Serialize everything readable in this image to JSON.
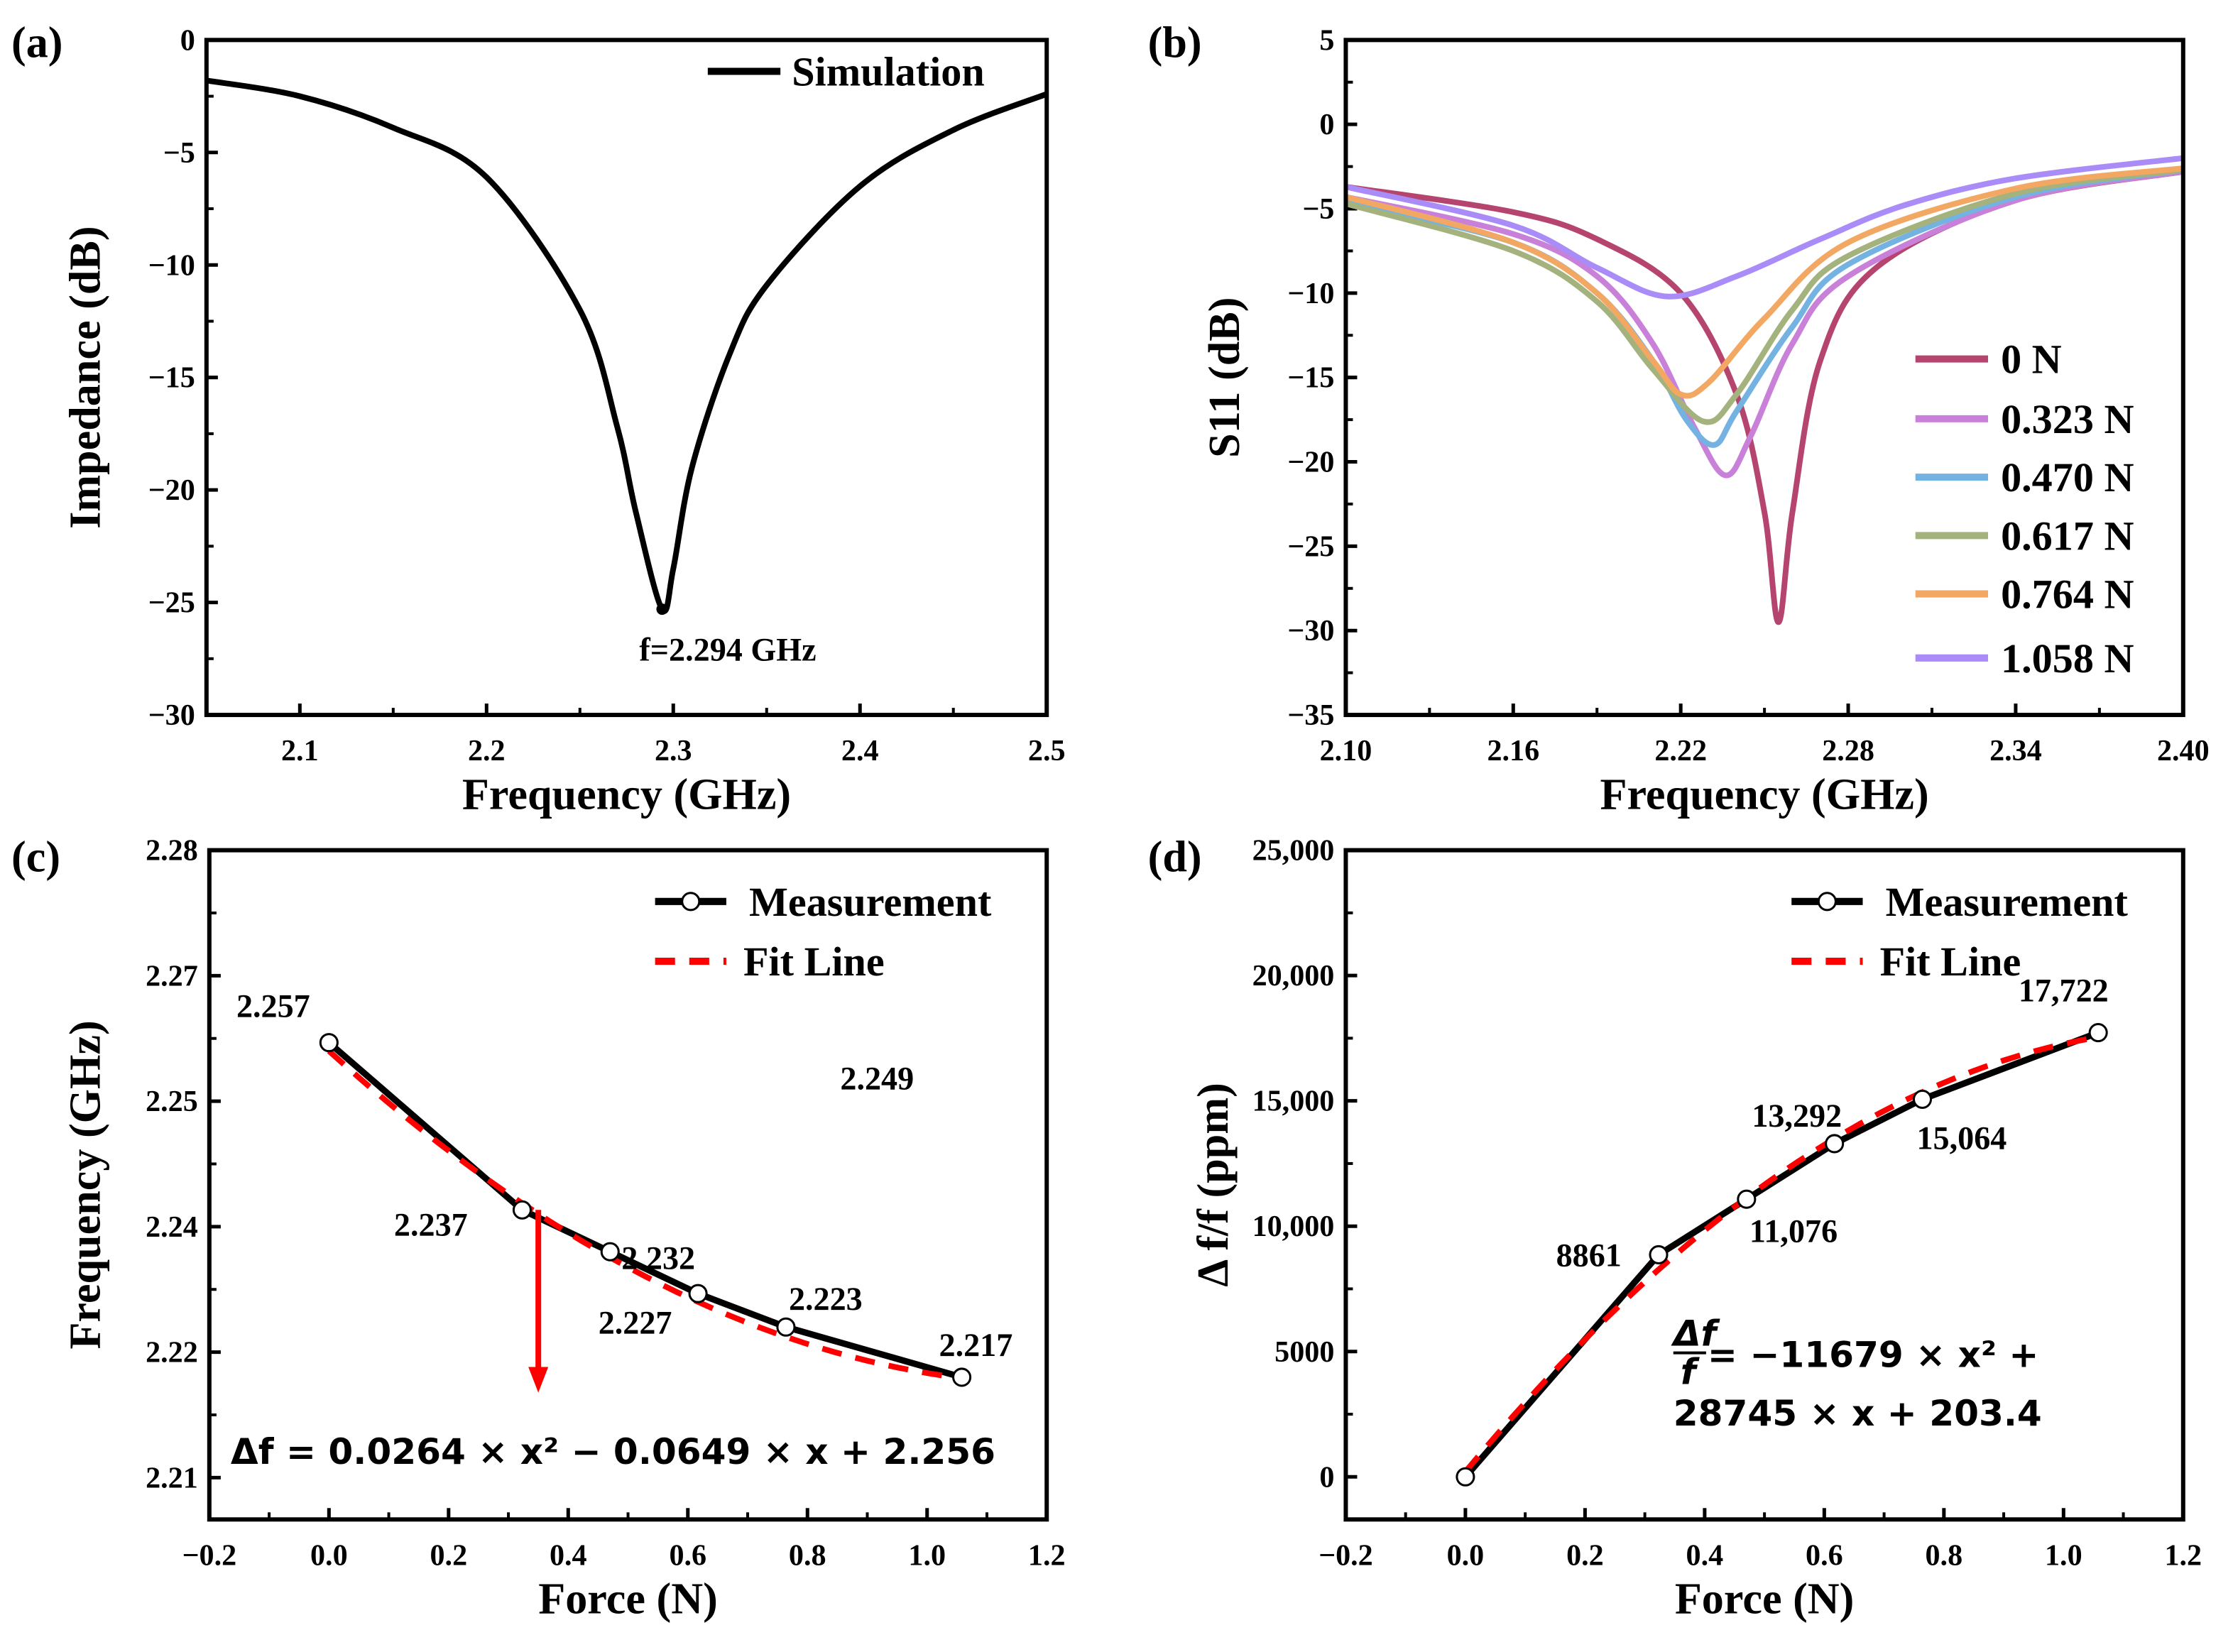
{
  "chart_data": [
    {
      "id": "a",
      "type": "line",
      "panel_label": "(a)",
      "xlabel": "Frequency (GHz)",
      "ylabel": "Impedance (dB)",
      "xlim": [
        2.05,
        2.5
      ],
      "ylim": [
        -30,
        0
      ],
      "xticks": [
        2.1,
        2.2,
        2.3,
        2.4,
        2.5
      ],
      "xtick_labels": [
        "2.1",
        "2.2",
        "2.3",
        "2.4",
        "2.5"
      ],
      "yticks": [
        0,
        -5,
        -10,
        -15,
        -20,
        -25,
        -30
      ],
      "ytick_labels": [
        "0",
        "−5",
        "−10",
        "−15",
        "−20",
        "−25",
        "−30"
      ],
      "legend": "top-right",
      "annotation": "f=2.294 GHz",
      "series": [
        {
          "name": "Simulation",
          "color": "#000000",
          "x": [
            2.05,
            2.1,
            2.15,
            2.2,
            2.25,
            2.27,
            2.28,
            2.294,
            2.3,
            2.31,
            2.33,
            2.35,
            2.4,
            2.45,
            2.5
          ],
          "y": [
            -1.8,
            -2.5,
            -3.9,
            -6.1,
            -12.0,
            -17.2,
            -21.0,
            -25.3,
            -23.5,
            -19.0,
            -14.0,
            -10.9,
            -6.5,
            -4.0,
            -2.4
          ]
        }
      ]
    },
    {
      "id": "b",
      "type": "line",
      "panel_label": "(b)",
      "xlabel": "Frequency (GHz)",
      "ylabel": "S11 (dB)",
      "xlim": [
        2.1,
        2.4
      ],
      "ylim": [
        -35,
        5
      ],
      "xticks": [
        2.1,
        2.16,
        2.22,
        2.28,
        2.34,
        2.4
      ],
      "xtick_labels": [
        "2.10",
        "2.16",
        "2.22",
        "2.28",
        "2.34",
        "2.40"
      ],
      "yticks": [
        5,
        0,
        -5,
        -10,
        -15,
        -20,
        -25,
        -30,
        -35
      ],
      "ytick_labels": [
        "5",
        "0",
        "−5",
        "−10",
        "−15",
        "−20",
        "−25",
        "−30",
        "−35"
      ],
      "legend": "right",
      "series": [
        {
          "name": "0 N",
          "color": "#b5456f",
          "x": [
            2.1,
            2.16,
            2.19,
            2.22,
            2.24,
            2.25,
            2.255,
            2.26,
            2.27,
            2.29,
            2.34,
            2.4
          ],
          "y": [
            -3.7,
            -5.2,
            -6.8,
            -10,
            -16,
            -23,
            -29.5,
            -23,
            -14,
            -8.5,
            -4.5,
            -2.8
          ]
        },
        {
          "name": "0.323 N",
          "color": "#c980d8",
          "x": [
            2.1,
            2.16,
            2.19,
            2.21,
            2.225,
            2.236,
            2.245,
            2.26,
            2.28,
            2.34,
            2.4
          ],
          "y": [
            -4.3,
            -6.5,
            -9,
            -13,
            -18,
            -20.8,
            -18.5,
            -13,
            -9,
            -4.5,
            -2.8
          ]
        },
        {
          "name": "0.470 N",
          "color": "#74b2e2",
          "x": [
            2.1,
            2.16,
            2.19,
            2.21,
            2.222,
            2.232,
            2.24,
            2.26,
            2.28,
            2.34,
            2.4
          ],
          "y": [
            -4.6,
            -7,
            -10,
            -14,
            -17.5,
            -19,
            -17,
            -12,
            -8.3,
            -4.3,
            -2.7
          ]
        },
        {
          "name": "0.617 N",
          "color": "#a4b27e",
          "x": [
            2.1,
            2.16,
            2.19,
            2.21,
            2.228,
            2.24,
            2.26,
            2.28,
            2.34,
            2.4
          ],
          "y": [
            -4.7,
            -7.5,
            -10.5,
            -14.5,
            -17.6,
            -16,
            -11,
            -7.8,
            -4.1,
            -2.7
          ]
        },
        {
          "name": "0.764 N",
          "color": "#f2a863",
          "x": [
            2.1,
            2.16,
            2.19,
            2.21,
            2.22,
            2.23,
            2.25,
            2.28,
            2.34,
            2.4
          ],
          "y": [
            -4.3,
            -7,
            -10,
            -14,
            -16,
            -15.3,
            -11.5,
            -7,
            -3.8,
            -2.6
          ]
        },
        {
          "name": "1.058 N",
          "color": "#a98cf7",
          "x": [
            2.1,
            2.16,
            2.19,
            2.215,
            2.24,
            2.27,
            2.3,
            2.34,
            2.4
          ],
          "y": [
            -3.7,
            -6,
            -8.5,
            -10.2,
            -9,
            -6.8,
            -4.8,
            -3.2,
            -2.0
          ]
        }
      ]
    },
    {
      "id": "c",
      "type": "line",
      "panel_label": "(c)",
      "xlabel": "Force (N)",
      "ylabel": "Frequency (GHz)",
      "xlim": [
        -0.2,
        1.2
      ],
      "ylim": [
        2.2,
        2.28
      ],
      "xticks": [
        -0.2,
        0,
        0.2,
        0.4,
        0.6,
        0.8,
        1.0,
        1.2
      ],
      "xtick_labels": [
        "−0.2",
        "0.0",
        "0.2",
        "0.4",
        "0.6",
        "0.8",
        "1.0",
        "1.2"
      ],
      "yticks": [
        2.28,
        2.265,
        2.25,
        2.235,
        2.22,
        2.205
      ],
      "ytick_labels": [
        "2.28",
        "2.27",
        "2.25",
        "2.24",
        "2.22",
        "2.21"
      ],
      "legend": "top-right",
      "series": [
        {
          "name": "Measurement",
          "color": "#000000",
          "x": [
            0,
            0.323,
            0.47,
            0.617,
            0.764,
            1.058
          ],
          "y": [
            2.257,
            2.237,
            2.232,
            2.227,
            2.223,
            2.217
          ],
          "labels": [
            "2.257",
            "2.237",
            "2.232",
            "2.227",
            "2.223",
            "2.217"
          ]
        },
        {
          "name": "Fit Line",
          "color": "#ff0000",
          "coefficients": [
            0.0264,
            -0.0649,
            2.256
          ],
          "x_range": [
            0,
            1.058
          ]
        }
      ],
      "extra_label": "2.249",
      "arrow": {
        "x": 0.35,
        "y_from": 2.237,
        "y_to": 2.2155,
        "color": "#ff0000"
      },
      "equation": "Δf = 0.0264 × x² − 0.0649 × x + 2.256"
    },
    {
      "id": "d",
      "type": "line",
      "panel_label": "(d)",
      "xlabel": "Force (N)",
      "ylabel": "Δ f/f (ppm)",
      "xlim": [
        -0.2,
        1.2
      ],
      "ylim": [
        -1700,
        25000
      ],
      "xticks": [
        -0.2,
        0,
        0.2,
        0.4,
        0.6,
        0.8,
        1.0,
        1.2
      ],
      "xtick_labels": [
        "−0.2",
        "0.0",
        "0.2",
        "0.4",
        "0.6",
        "0.8",
        "1.0",
        "1.2"
      ],
      "yticks": [
        25000,
        20000,
        15000,
        10000,
        5000,
        0
      ],
      "ytick_labels": [
        "25,000",
        "20,000",
        "15,000",
        "10,000",
        "5000",
        "0"
      ],
      "legend": "top-right",
      "series": [
        {
          "name": "Measurement",
          "color": "#000000",
          "x": [
            0,
            0.323,
            0.47,
            0.617,
            0.764,
            1.058
          ],
          "y": [
            0,
            8861,
            11076,
            13292,
            15064,
            17722
          ],
          "labels": [
            "",
            "8861",
            "11,076",
            "13,292",
            "15,064",
            "17,722"
          ]
        },
        {
          "name": "Fit Line",
          "color": "#ff0000",
          "coefficients": [
            -11679,
            28745,
            203.4
          ],
          "x_range": [
            0,
            1.058
          ]
        }
      ],
      "equation_line1": "= −11679 × x² +",
      "equation_frac_num": "Δf",
      "equation_frac_den": "f",
      "equation_line2": "28745 × x + 203.4"
    }
  ]
}
